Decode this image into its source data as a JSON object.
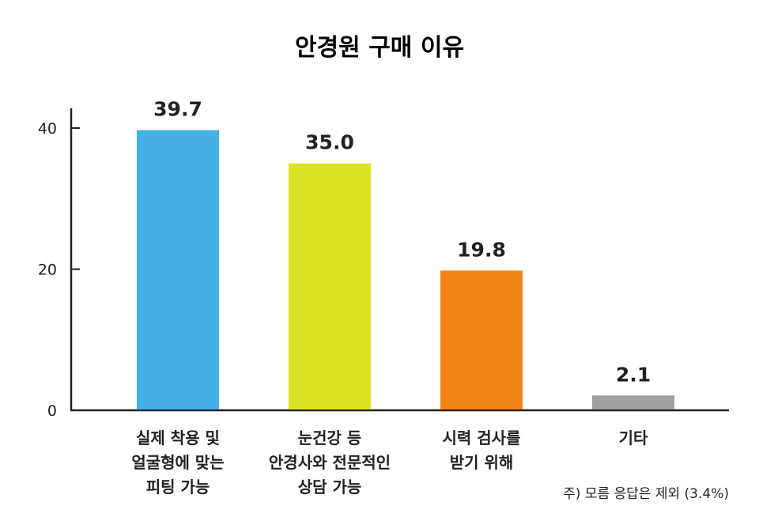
{
  "chart_data": {
    "type": "bar",
    "title": "안경원 구매 이유",
    "categories": [
      [
        "실제 착용 및",
        "얼굴형에 맞는",
        "피팅 가능"
      ],
      [
        "눈건강 등",
        "안경사와 전문적인",
        "상담 가능"
      ],
      [
        "시력 검사를",
        "받기 위해"
      ],
      [
        "기타"
      ]
    ],
    "values": [
      39.7,
      35.0,
      19.8,
      2.1
    ],
    "value_labels": [
      "39.7",
      "35.0",
      "19.8",
      "2.1"
    ],
    "colors": [
      "#43b0e6",
      "#dce325",
      "#f08314",
      "#a0a0a0"
    ],
    "yticks": [
      0,
      20,
      40
    ],
    "ylim": [
      0,
      42.8
    ],
    "xlabel": "",
    "ylabel": "",
    "grid": false,
    "note": "주) 모름 응답은 제외 (3.4%)"
  }
}
